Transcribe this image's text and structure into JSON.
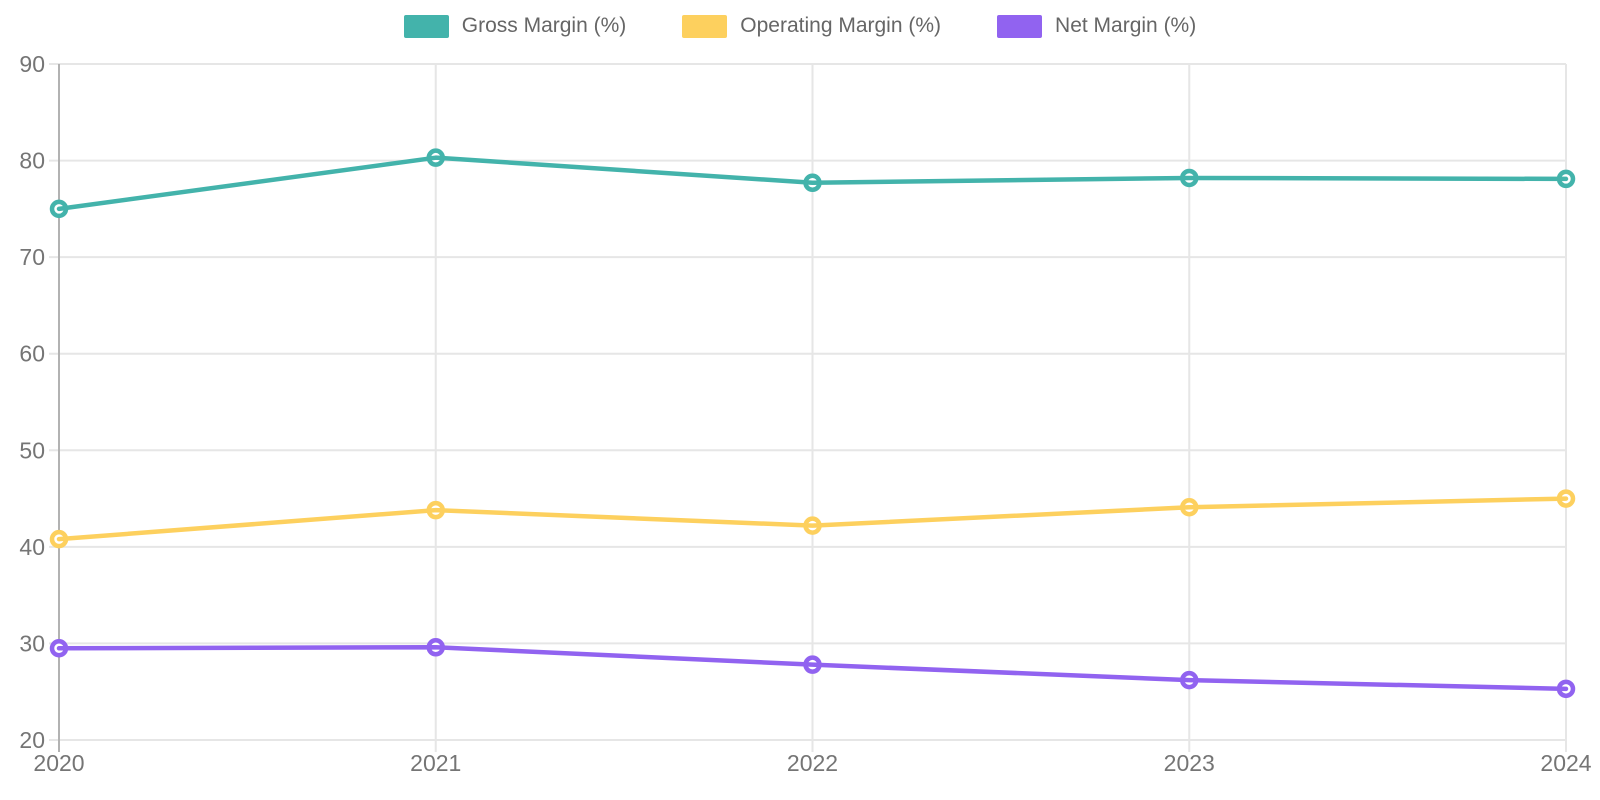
{
  "chart_data": {
    "type": "line",
    "title": "",
    "xlabel": "",
    "ylabel": "",
    "categories": [
      "2020",
      "2021",
      "2022",
      "2023",
      "2024"
    ],
    "series": [
      {
        "name": "Gross Margin (%)",
        "color": "#43b3ab",
        "values": [
          75.0,
          80.3,
          77.7,
          78.2,
          78.1
        ]
      },
      {
        "name": "Operating Margin (%)",
        "color": "#fdd05e",
        "values": [
          40.8,
          43.8,
          42.2,
          44.1,
          45.0
        ]
      },
      {
        "name": "Net Margin (%)",
        "color": "#9163f0",
        "values": [
          29.5,
          29.6,
          27.8,
          26.2,
          25.3
        ]
      }
    ],
    "y_ticks": [
      20,
      30,
      40,
      50,
      60,
      70,
      80,
      90
    ],
    "ylim": [
      20,
      90
    ],
    "grid": true,
    "legend_position": "top"
  }
}
